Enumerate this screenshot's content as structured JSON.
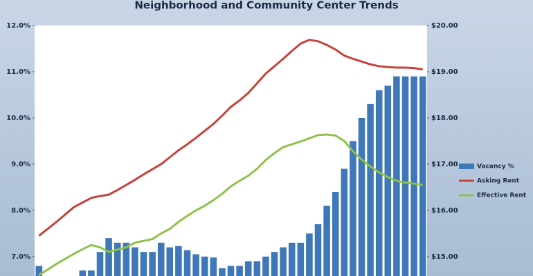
{
  "chart_data": {
    "type": "bar-line",
    "title": "Neighborhood and Community Center Trends",
    "categories": [
      null,
      null,
      null,
      null,
      null,
      null,
      null,
      null,
      null,
      null,
      null,
      null,
      null,
      null,
      null,
      null,
      null,
      null,
      null,
      null,
      null,
      null,
      null,
      null,
      null,
      null,
      null,
      null,
      null,
      null,
      null,
      null,
      null,
      null,
      null,
      null,
      null,
      null,
      null,
      null,
      null,
      null,
      null,
      null,
      null
    ],
    "series": [
      {
        "name": "Vacancy %",
        "type": "bar",
        "color": "#3f78b8",
        "values": [
          6.8,
          null,
          null,
          null,
          null,
          6.7,
          6.7,
          7.1,
          7.4,
          7.3,
          7.3,
          7.2,
          7.1,
          7.1,
          7.3,
          7.2,
          7.23,
          7.14,
          7.05,
          7.0,
          6.98,
          6.75,
          6.8,
          6.8,
          6.9,
          6.9,
          7.0,
          7.1,
          7.2,
          7.3,
          7.3,
          7.5,
          7.7,
          8.1,
          8.4,
          8.9,
          9.5,
          10.0,
          10.3,
          10.6,
          10.7,
          10.9,
          10.9,
          10.9,
          10.9
        ]
      },
      {
        "name": "Asking Rent",
        "type": "line",
        "axis": "y2",
        "color": "#c8413b",
        "values": [
          15.45,
          15.6,
          15.75,
          15.91,
          16.07,
          16.17,
          16.27,
          16.31,
          16.34,
          16.44,
          16.55,
          16.66,
          16.78,
          16.89,
          17.0,
          17.15,
          17.3,
          17.43,
          17.57,
          17.72,
          17.87,
          18.05,
          18.24,
          18.38,
          18.54,
          18.75,
          18.96,
          19.12,
          19.28,
          19.45,
          19.61,
          19.69,
          19.66,
          19.58,
          19.48,
          19.35,
          19.28,
          19.22,
          19.16,
          19.12,
          19.1,
          19.09,
          19.09,
          19.08,
          19.05
        ]
      },
      {
        "name": "Effective Rent",
        "type": "line",
        "axis": "y2",
        "color": "#8fc24a",
        "values": [
          14.6,
          14.72,
          14.84,
          14.95,
          15.06,
          15.16,
          15.25,
          15.2,
          15.1,
          15.15,
          15.2,
          15.3,
          15.34,
          15.38,
          15.5,
          15.6,
          15.75,
          15.88,
          16.0,
          16.1,
          16.22,
          16.36,
          16.52,
          16.64,
          16.75,
          16.9,
          17.09,
          17.24,
          17.37,
          17.43,
          17.49,
          17.56,
          17.63,
          17.64,
          17.62,
          17.5,
          17.28,
          17.1,
          16.95,
          16.82,
          16.72,
          16.64,
          16.6,
          16.58,
          16.55
        ]
      }
    ],
    "ylim": [
      6.58,
      12.0
    ],
    "yticks": [
      {
        "value": 7.0,
        "label": "7.0%"
      },
      {
        "value": 8.0,
        "label": "8.0%"
      },
      {
        "value": 9.0,
        "label": "9.0%"
      },
      {
        "value": 10.0,
        "label": "10.0%"
      },
      {
        "value": 11.0,
        "label": "11.0%"
      },
      {
        "value": 12.0,
        "label": "12.0%"
      }
    ],
    "y2lim": [
      14.58,
      20.0
    ],
    "y2ticks": [
      {
        "value": 15,
        "label": "$15.00"
      },
      {
        "value": 16,
        "label": "$16.00"
      },
      {
        "value": 17,
        "label": "$17.00"
      },
      {
        "value": 18,
        "label": "$18.00"
      },
      {
        "value": 19,
        "label": "$19.00"
      },
      {
        "value": 20,
        "label": "$20.00"
      }
    ],
    "legend": "right"
  }
}
